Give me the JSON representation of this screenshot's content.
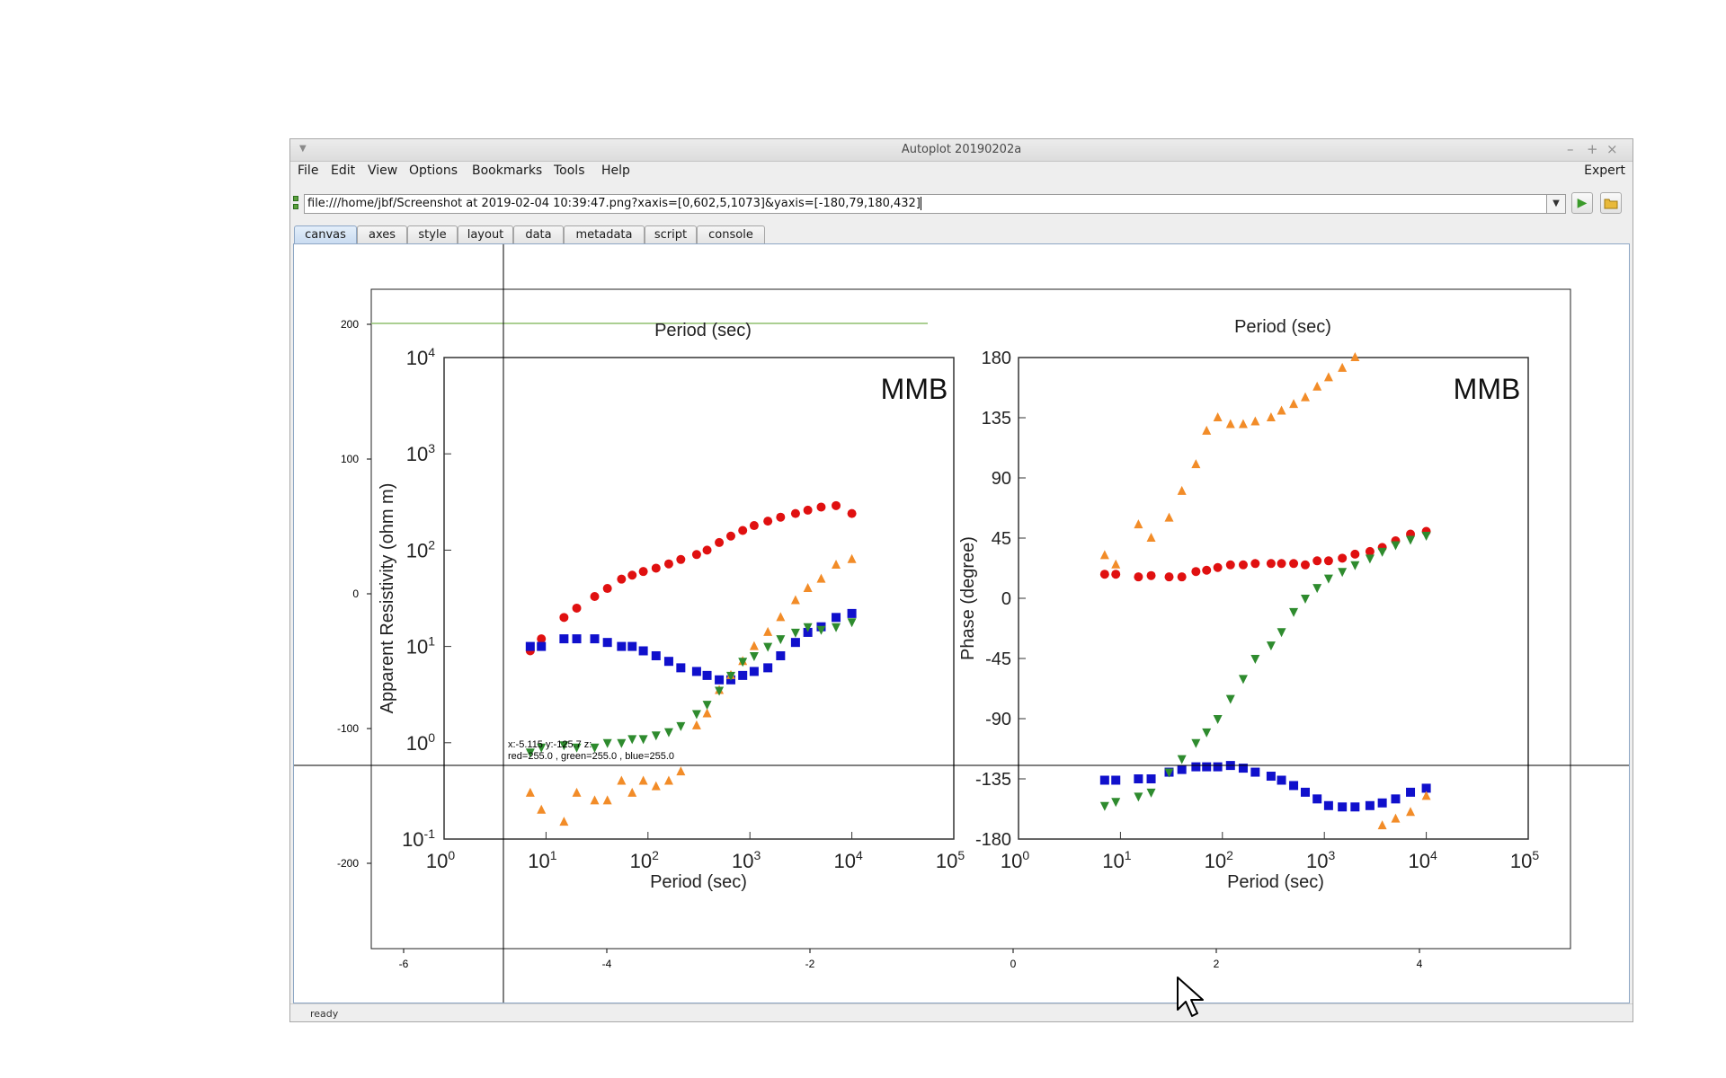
{
  "window": {
    "title": "Autoplot 20190202a",
    "window_buttons": [
      "–",
      "+",
      "×"
    ]
  },
  "menubar": {
    "items": [
      "File",
      "Edit",
      "View",
      "Options",
      "Bookmarks",
      "Tools",
      "Help"
    ],
    "expert_label": "Expert"
  },
  "url_bar": {
    "value": "file:///home/jbf/Screenshot at 2019-02-04 10:39:47.png?xaxis=[0,602,5,1073]&yaxis=[-180,79,180,432]",
    "dropdown_icon": "chevron-down-icon",
    "go_icon": "play-icon",
    "browse_icon": "folder-icon"
  },
  "tabs": [
    "canvas",
    "axes",
    "style",
    "layout",
    "data",
    "metadata",
    "script",
    "console"
  ],
  "active_tab": "canvas",
  "status": {
    "text": "ready"
  },
  "plot": {
    "x_ticks": [
      "-6",
      "-4",
      "-2",
      "0",
      "2",
      "4"
    ],
    "y_ticks": [
      "200",
      "100",
      "0",
      "-100",
      "-200"
    ],
    "crosshair_readout_line1": "x:-5.115  y:-125.7  z:",
    "crosshair_readout_line2": "red=255.0 , green=255.0 , blue=255.0",
    "crosshair": {
      "x": -5.115,
      "y": -125.7
    }
  },
  "image": {
    "panel1": {
      "top_label": "Period (sec)",
      "ylabel": "Apparent Resistivity (ohm m)",
      "xlabel": "Period (sec)",
      "station": "MMB",
      "y_tick_exponents": [
        "4",
        "3",
        "2",
        "1",
        "0",
        "-1"
      ],
      "x_tick_exponents": [
        "0",
        "1",
        "2",
        "3",
        "4",
        "5"
      ]
    },
    "panel2": {
      "top_label": "Period (sec)",
      "ylabel": "Phase (degree)",
      "xlabel": "Period (sec)",
      "station": "MMB",
      "y_ticks": [
        "180",
        "135",
        "90",
        "45",
        "0",
        "-45",
        "-90",
        "-135",
        "-180"
      ],
      "x_tick_exponents": [
        "0",
        "1",
        "2",
        "3",
        "4",
        "5"
      ]
    },
    "tick_base": "10"
  },
  "chart_data": {
    "type": "scatter",
    "xlabel": "Period (sec)",
    "ylabel_left": "Apparent Resistivity (ohm m)",
    "ylabel_right": "Phase (degree)",
    "xscale": "log",
    "xlim": [
      1,
      100000
    ],
    "resistivity_ylim": [
      0.1,
      10000
    ],
    "phase_ylim": [
      -180,
      180
    ],
    "colors": {
      "red": "#e01010",
      "blue": "#1010cc",
      "orange": "#f28c28",
      "green": "#2e8b2e"
    },
    "resistivity_series": [
      {
        "color": "red",
        "x": [
          7,
          9,
          15,
          20,
          30,
          40,
          55,
          70,
          90,
          120,
          160,
          210,
          300,
          380,
          500,
          650,
          850,
          1100,
          1500,
          2000,
          2800,
          3700,
          5000,
          7000,
          10000
        ],
        "y": [
          9,
          12,
          20,
          25,
          33,
          40,
          50,
          55,
          60,
          65,
          72,
          80,
          90,
          100,
          120,
          140,
          160,
          180,
          200,
          220,
          240,
          260,
          280,
          290,
          240
        ]
      },
      {
        "color": "blue",
        "x": [
          7,
          9,
          15,
          20,
          30,
          40,
          55,
          70,
          90,
          120,
          160,
          210,
          300,
          380,
          500,
          650,
          850,
          1100,
          1500,
          2000,
          2800,
          3700,
          5000,
          7000,
          10000
        ],
        "y": [
          10,
          10,
          12,
          12,
          12,
          11,
          10,
          10,
          9,
          8,
          7,
          6,
          5.5,
          5,
          4.5,
          4.5,
          5,
          5.5,
          6,
          8,
          11,
          14,
          16,
          20,
          22
        ]
      },
      {
        "color": "orange",
        "x": [
          7,
          9,
          15,
          20,
          30,
          40,
          55,
          70,
          90,
          120,
          160,
          210,
          300,
          380,
          500,
          650,
          850,
          1100,
          1500,
          2000,
          2800,
          3700,
          5000,
          7000,
          10000
        ],
        "y": [
          0.3,
          0.2,
          0.15,
          0.3,
          0.25,
          0.25,
          0.4,
          0.3,
          0.4,
          0.35,
          0.4,
          0.5,
          1.5,
          2,
          3.5,
          5,
          7,
          10,
          14,
          20,
          30,
          40,
          50,
          70,
          80
        ]
      },
      {
        "color": "green",
        "x": [
          7,
          9,
          15,
          20,
          30,
          40,
          55,
          70,
          90,
          120,
          160,
          210,
          300,
          380,
          500,
          650,
          850,
          1100,
          1500,
          2000,
          2800,
          3700,
          5000,
          7000,
          10000
        ],
        "y": [
          0.8,
          0.9,
          0.95,
          0.9,
          0.9,
          1.0,
          1.0,
          1.1,
          1.1,
          1.2,
          1.3,
          1.5,
          2,
          2.5,
          3.5,
          5,
          7,
          8,
          10,
          12,
          14,
          16,
          15,
          16,
          18
        ]
      }
    ],
    "phase_series": [
      {
        "color": "red",
        "x": [
          7,
          9,
          15,
          20,
          30,
          40,
          55,
          70,
          90,
          120,
          160,
          210,
          300,
          380,
          500,
          650,
          850,
          1100,
          1500,
          2000,
          2800,
          3700,
          5000,
          7000,
          10000
        ],
        "y": [
          18,
          18,
          16,
          17,
          16,
          16,
          20,
          21,
          23,
          25,
          25,
          26,
          26,
          26,
          26,
          25,
          28,
          28,
          30,
          33,
          35,
          38,
          43,
          48,
          50
        ]
      },
      {
        "color": "blue",
        "x": [
          7,
          9,
          15,
          20,
          30,
          40,
          55,
          70,
          90,
          120,
          160,
          210,
          300,
          380,
          500,
          650,
          850,
          1100,
          1500,
          2000,
          2800,
          3700,
          5000,
          7000,
          10000
        ],
        "y": [
          -136,
          -136,
          -135,
          -135,
          -130,
          -128,
          -126,
          -126,
          -126,
          -125,
          -127,
          -130,
          -133,
          -136,
          -140,
          -145,
          -150,
          -155,
          -156,
          -156,
          -155,
          -153,
          -150,
          -145,
          -142
        ]
      },
      {
        "color": "orange",
        "x": [
          7,
          9,
          15,
          20,
          30,
          40,
          55,
          70,
          90,
          120,
          160,
          210,
          300,
          380,
          500,
          650,
          850,
          1100,
          1500,
          2000,
          2800,
          3700,
          5000,
          7000,
          10000
        ],
        "y": [
          32,
          25,
          55,
          45,
          60,
          80,
          100,
          125,
          135,
          130,
          130,
          132,
          135,
          140,
          145,
          150,
          158,
          165,
          172,
          180,
          185,
          -170,
          -165,
          -160,
          -148
        ]
      },
      {
        "color": "green",
        "x": [
          7,
          9,
          15,
          20,
          30,
          40,
          55,
          70,
          90,
          120,
          160,
          210,
          300,
          380,
          500,
          650,
          850,
          1100,
          1500,
          2000,
          2800,
          3700,
          5000,
          7000,
          10000
        ],
        "y": [
          -155,
          -152,
          -148,
          -145,
          -130,
          -120,
          -108,
          -100,
          -90,
          -75,
          -60,
          -45,
          -35,
          -25,
          -10,
          0,
          8,
          15,
          20,
          25,
          30,
          35,
          40,
          44,
          47
        ]
      }
    ]
  }
}
